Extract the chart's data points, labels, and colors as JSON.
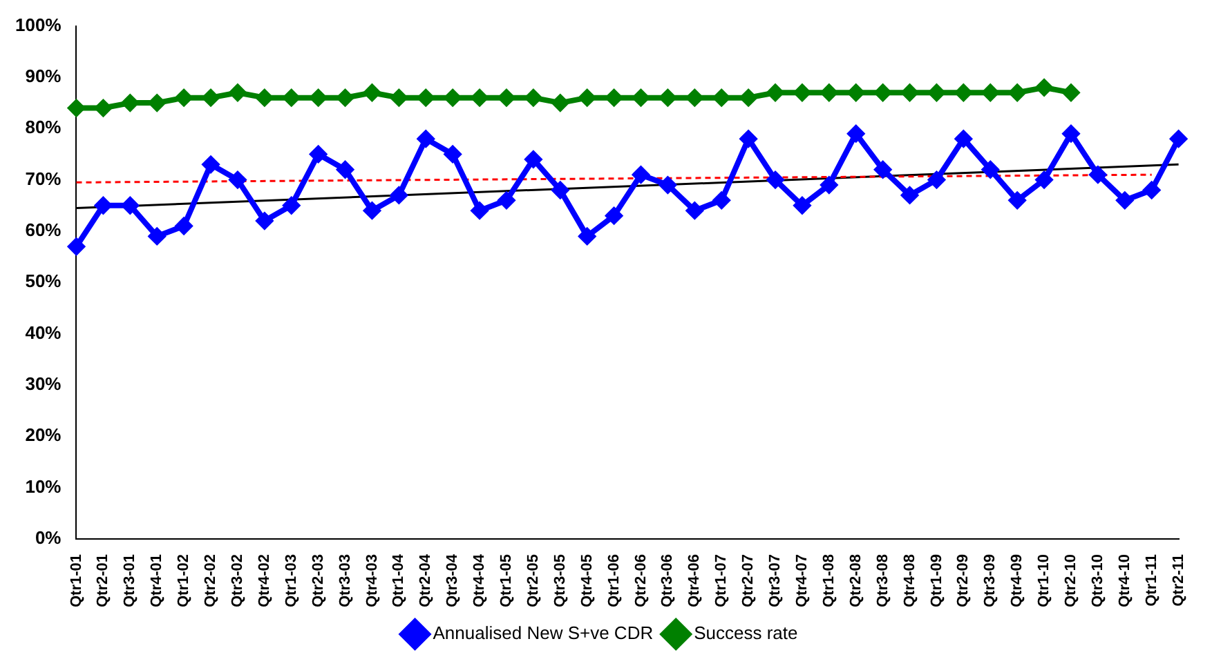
{
  "chart_data": {
    "type": "line",
    "categories": [
      "Qtr1-01",
      "Qtr2-01",
      "Qtr3-01",
      "Qtr4-01",
      "Qtr1-02",
      "Qtr2-02",
      "Qtr3-02",
      "Qtr4-02",
      "Qtr1-03",
      "Qtr2-03",
      "Qtr3-03",
      "Qtr4-03",
      "Qtr1-04",
      "Qtr2-04",
      "Qtr3-04",
      "Qtr4-04",
      "Qtr1-05",
      "Qtr2-05",
      "Qtr3-05",
      "Qtr4-05",
      "Qtr1-06",
      "Qtr2-06",
      "Qtr3-06",
      "Qtr4-06",
      "Qtr1-07",
      "Qtr2-07",
      "Qtr3-07",
      "Qtr4-07",
      "Qtr1-08",
      "Qtr2-08",
      "Qtr3-08",
      "Qtr4-08",
      "Qtr1-09",
      "Qtr2-09",
      "Qtr3-09",
      "Qtr4-09",
      "Qtr1-10",
      "Qtr2-10",
      "Qtr3-10",
      "Qtr4-10",
      "Qtr1-11",
      "Qtr2-11"
    ],
    "series": [
      {
        "name": "Annualised New S+ve CDR",
        "color": "#0000ff",
        "marker": "diamond",
        "values": [
          57,
          65,
          65,
          59,
          61,
          73,
          70,
          62,
          65,
          75,
          72,
          64,
          67,
          78,
          75,
          64,
          66,
          74,
          68,
          59,
          63,
          71,
          69,
          64,
          66,
          78,
          70,
          65,
          69,
          79,
          72,
          67,
          70,
          78,
          72,
          66,
          70,
          79,
          71,
          66,
          68,
          78
        ]
      },
      {
        "name": "Success rate",
        "color": "#008000",
        "marker": "diamond",
        "values": [
          84,
          84,
          85,
          85,
          86,
          86,
          87,
          86,
          86,
          86,
          86,
          87,
          86,
          86,
          86,
          86,
          86,
          86,
          85,
          86,
          86,
          86,
          86,
          86,
          86,
          86,
          87,
          87,
          87,
          87,
          87,
          87,
          87,
          87,
          87,
          87,
          88,
          87,
          null,
          null,
          null,
          null
        ]
      },
      {
        "color": "#ff0000",
        "marker": "none",
        "line_style": "dashed",
        "values": [
          69.5,
          null,
          null,
          null,
          null,
          null,
          null,
          null,
          null,
          null,
          null,
          null,
          null,
          null,
          null,
          null,
          null,
          null,
          null,
          null,
          null,
          null,
          null,
          null,
          null,
          null,
          null,
          null,
          null,
          null,
          null,
          null,
          null,
          null,
          null,
          null,
          null,
          null,
          null,
          null,
          71,
          null
        ]
      },
      {
        "color": "#000000",
        "marker": "none",
        "line_style": "solid",
        "values": [
          64.5,
          null,
          null,
          null,
          null,
          null,
          null,
          null,
          null,
          null,
          null,
          null,
          null,
          null,
          null,
          null,
          null,
          null,
          null,
          null,
          null,
          null,
          null,
          null,
          null,
          null,
          null,
          null,
          null,
          null,
          null,
          null,
          null,
          null,
          null,
          null,
          null,
          null,
          null,
          null,
          null,
          73
        ]
      }
    ],
    "ylim": [
      0,
      100
    ],
    "yticks": [
      {
        "value": 0,
        "label": "0%"
      },
      {
        "value": 10,
        "label": "10%"
      },
      {
        "value": 20,
        "label": "20%"
      },
      {
        "value": 30,
        "label": "30%"
      },
      {
        "value": 40,
        "label": "40%"
      },
      {
        "value": 50,
        "label": "50%"
      },
      {
        "value": 60,
        "label": "60%"
      },
      {
        "value": 70,
        "label": "70%"
      },
      {
        "value": 80,
        "label": "80%"
      },
      {
        "value": 90,
        "label": "90%"
      },
      {
        "value": 100,
        "label": "100%"
      }
    ],
    "grid": false,
    "legend": "bottom"
  }
}
